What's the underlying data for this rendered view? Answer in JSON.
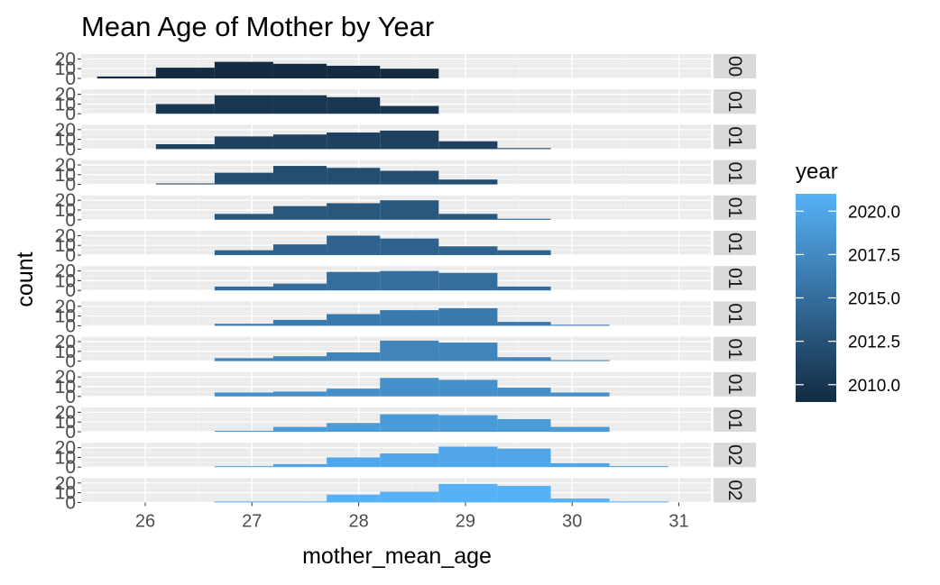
{
  "chart_data": {
    "type": "bar",
    "title": "Mean Age of Mother by Year",
    "xlabel": "mother_mean_age",
    "ylabel": "count",
    "xlim": [
      25.4,
      31.3
    ],
    "ylim": [
      0,
      25
    ],
    "x_ticks": [
      "26",
      "27",
      "28",
      "29",
      "30",
      "31"
    ],
    "y_ticks": [
      "20",
      "10",
      "0"
    ],
    "bins": [
      25.55,
      26.1,
      26.65,
      27.2,
      27.7,
      28.2,
      28.75,
      29.3,
      29.8,
      30.35,
      30.9
    ],
    "legend": {
      "title": "year",
      "placement": "right",
      "low": 2009,
      "high": 2021,
      "low_color": "#132B43",
      "high_color": "#56B1F7",
      "labels": [
        "2020.0",
        "2017.5",
        "2015.0",
        "2012.5",
        "2010.0"
      ],
      "label_values": [
        2020.0,
        2017.5,
        2015.0,
        2012.5,
        2010.0
      ]
    },
    "panels": [
      {
        "strip": "00",
        "year": 2009,
        "counts": [
          2,
          11,
          17,
          15,
          13,
          10,
          0,
          0,
          0,
          0
        ]
      },
      {
        "strip": "01",
        "year": 2010,
        "counts": [
          0,
          10,
          19,
          19,
          17,
          8,
          0,
          0,
          0,
          0
        ]
      },
      {
        "strip": "01",
        "year": 2011,
        "counts": [
          0,
          5,
          13,
          15,
          17,
          19,
          8,
          1,
          0,
          0
        ]
      },
      {
        "strip": "01",
        "year": 2012,
        "counts": [
          0,
          1,
          12,
          19,
          17,
          14,
          5,
          0,
          0,
          0
        ]
      },
      {
        "strip": "01",
        "year": 2013,
        "counts": [
          0,
          0,
          6,
          14,
          17,
          20,
          6,
          1,
          0,
          0
        ]
      },
      {
        "strip": "01",
        "year": 2014,
        "counts": [
          0,
          0,
          5,
          11,
          20,
          17,
          9,
          5,
          0,
          0
        ]
      },
      {
        "strip": "01",
        "year": 2015,
        "counts": [
          0,
          0,
          4,
          7,
          19,
          20,
          18,
          4,
          0,
          0
        ]
      },
      {
        "strip": "01",
        "year": 2016,
        "counts": [
          0,
          0,
          2,
          6,
          12,
          16,
          18,
          4,
          1,
          0
        ]
      },
      {
        "strip": "01",
        "year": 2017,
        "counts": [
          0,
          0,
          3,
          5,
          9,
          21,
          19,
          4,
          1,
          0
        ]
      },
      {
        "strip": "01",
        "year": 2018,
        "counts": [
          0,
          0,
          4,
          5,
          8,
          19,
          17,
          9,
          4,
          0
        ]
      },
      {
        "strip": "01",
        "year": 2019,
        "counts": [
          0,
          0,
          1,
          5,
          9,
          18,
          17,
          13,
          5,
          0
        ]
      },
      {
        "strip": "02",
        "year": 2020,
        "counts": [
          0,
          0,
          1,
          3,
          10,
          14,
          21,
          19,
          4,
          1
        ]
      },
      {
        "strip": "02",
        "year": 2021,
        "counts": [
          0,
          0,
          1,
          1,
          8,
          11,
          19,
          17,
          4,
          1
        ]
      }
    ]
  }
}
